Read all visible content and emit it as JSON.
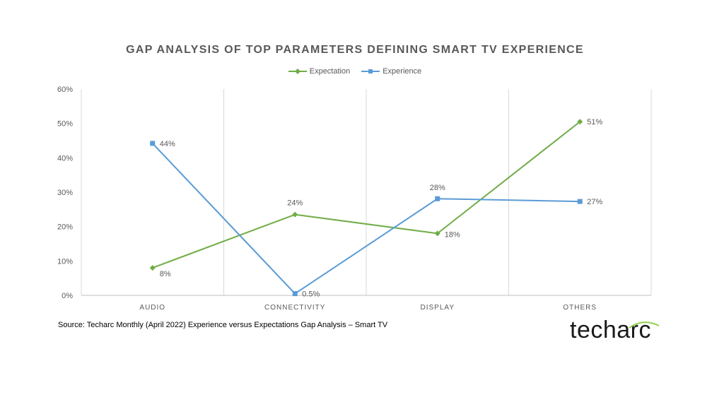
{
  "chart_data": {
    "type": "line",
    "title": "GAP ANALYSIS OF TOP PARAMETERS DEFINING SMART TV EXPERIENCE",
    "categories": [
      "AUDIO",
      "CONNECTIVITY",
      "DISPLAY",
      "OTHERS"
    ],
    "series": [
      {
        "name": "Expectation",
        "color": "#70ad47",
        "marker": "diamond",
        "values": [
          8,
          23.5,
          18,
          50.5
        ],
        "labels": [
          "8%",
          "24%",
          "18%",
          "51%"
        ]
      },
      {
        "name": "Experience",
        "color": "#5b9bd5",
        "marker": "square",
        "values": [
          44.2,
          0.5,
          28.1,
          27.3
        ],
        "labels": [
          "44%",
          "0.5%",
          "28%",
          "27%"
        ]
      }
    ],
    "yticks": [
      "0%",
      "10%",
      "20%",
      "30%",
      "40%",
      "50%",
      "60%"
    ],
    "ylim": [
      0,
      60
    ],
    "legend_position": "top",
    "grid": "vertical"
  },
  "source": "Source: Techarc Monthly (April 2022) Experience versus Expectations Gap Analysis – Smart TV",
  "logo": {
    "text": "techarc",
    "accent_color": "#8fd14f"
  }
}
